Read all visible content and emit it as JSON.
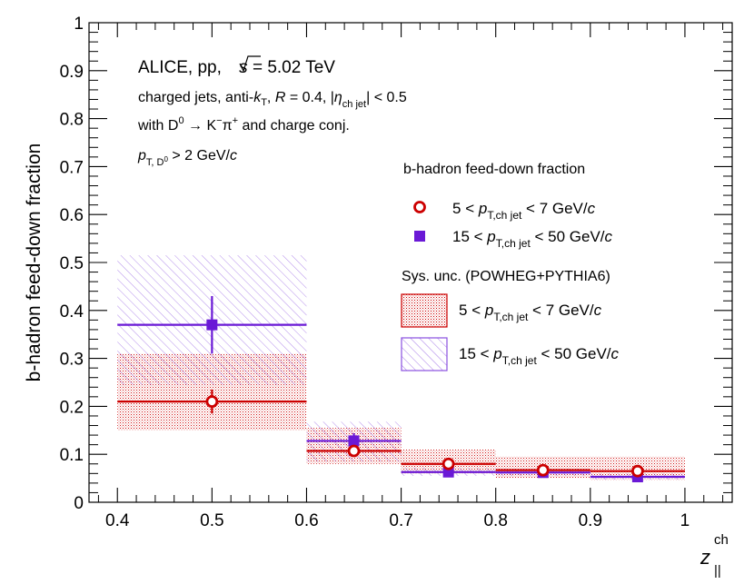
{
  "chart_data": {
    "type": "scatter",
    "title": "",
    "xlabel": "z",
    "xlabel_sub": "||",
    "xlabel_sup": "ch",
    "ylabel": "b-hadron feed-down fraction",
    "xlim": [
      0.37,
      1.05
    ],
    "ylim": [
      0,
      1
    ],
    "x_ticks": [
      0.4,
      0.5,
      0.6,
      0.7,
      0.8,
      0.9,
      1
    ],
    "x_tick_labels": [
      "0.4",
      "0.5",
      "0.6",
      "0.7",
      "0.8",
      "0.9",
      "1"
    ],
    "y_ticks": [
      0,
      0.1,
      0.2,
      0.3,
      0.4,
      0.5,
      0.6,
      0.7,
      0.8,
      0.9,
      1
    ],
    "y_tick_labels": [
      "0",
      "0.1",
      "0.2",
      "0.3",
      "0.4",
      "0.5",
      "0.6",
      "0.7",
      "0.8",
      "0.9",
      "1"
    ],
    "annotations": {
      "experiment": "ALICE, pp, ",
      "sqrt_s": "s",
      "energy": " = 5.02 TeV",
      "line2_a": "charged jets, anti-",
      "line2_k": "k",
      "line2_T": "T",
      "line2_b": ", ",
      "line2_R": "R",
      "line2_c": " = 0.4, |",
      "line2_eta": "η",
      "line2_eta_sub": "ch jet",
      "line2_d": "| < 0.5",
      "line3_a": "with D",
      "line3_D_sup": "0",
      "line3_b": " → K",
      "line3_K_sup": "−",
      "line3_c": "π",
      "line3_pi_sup": "+",
      "line3_d": " and charge conj.",
      "line4_p": "p",
      "line4_sub": "T, D",
      "line4_subsup": "0",
      "line4_rest": " > 2 GeV/",
      "line4_c": "c"
    },
    "legend": {
      "title": "b-hadron feed-down fraction",
      "sys_title": "Sys. unc. (POWHEG+PYTHIA6)",
      "entries": [
        {
          "lo": "5",
          "hi": " 7 GeV/",
          "p": "p",
          "sub": "T,ch jet",
          "c": "c",
          "lt": " < ",
          "lt2": " < "
        },
        {
          "lo": "15",
          "hi": " 50 GeV/",
          "p": "p",
          "sub": "T,ch jet",
          "c": "c",
          "lt": " < ",
          "lt2": " < "
        }
      ]
    },
    "series": [
      {
        "name": "5 < pT,ch jet < 7 GeV/c",
        "color": "#cc0000",
        "marker": "open-circle",
        "points": [
          {
            "x": 0.5,
            "xlo": 0.4,
            "xhi": 0.6,
            "y": 0.21,
            "stat": 0.025,
            "sys_lo": 0.15,
            "sys_hi": 0.31
          },
          {
            "x": 0.65,
            "xlo": 0.6,
            "xhi": 0.7,
            "y": 0.107,
            "stat": 0.006,
            "sys_lo": 0.08,
            "sys_hi": 0.155
          },
          {
            "x": 0.75,
            "xlo": 0.7,
            "xhi": 0.8,
            "y": 0.08,
            "stat": 0.004,
            "sys_lo": 0.06,
            "sys_hi": 0.11
          },
          {
            "x": 0.85,
            "xlo": 0.8,
            "xhi": 0.9,
            "y": 0.067,
            "stat": 0.004,
            "sys_lo": 0.05,
            "sys_hi": 0.095
          },
          {
            "x": 0.95,
            "xlo": 0.9,
            "xhi": 1.0,
            "y": 0.065,
            "stat": 0.004,
            "sys_lo": 0.047,
            "sys_hi": 0.095
          }
        ]
      },
      {
        "name": "15 < pT,ch jet < 50 GeV/c",
        "color": "#6a19d6",
        "marker": "filled-square",
        "points": [
          {
            "x": 0.5,
            "xlo": 0.4,
            "xhi": 0.6,
            "y": 0.37,
            "stat": 0.06,
            "sys_lo": 0.245,
            "sys_hi": 0.515
          },
          {
            "x": 0.65,
            "xlo": 0.6,
            "xhi": 0.7,
            "y": 0.128,
            "stat": 0.016,
            "sys_lo": 0.085,
            "sys_hi": 0.168
          },
          {
            "x": 0.75,
            "xlo": 0.7,
            "xhi": 0.8,
            "y": 0.063,
            "stat": 0.004,
            "sys_lo": 0.055,
            "sys_hi": 0.072
          },
          {
            "x": 0.85,
            "xlo": 0.8,
            "xhi": 0.9,
            "y": 0.062,
            "stat": 0.004,
            "sys_lo": 0.055,
            "sys_hi": 0.07
          },
          {
            "x": 0.95,
            "xlo": 0.9,
            "xhi": 1.0,
            "y": 0.053,
            "stat": 0.004,
            "sys_lo": 0.047,
            "sys_hi": 0.06
          }
        ]
      }
    ]
  }
}
